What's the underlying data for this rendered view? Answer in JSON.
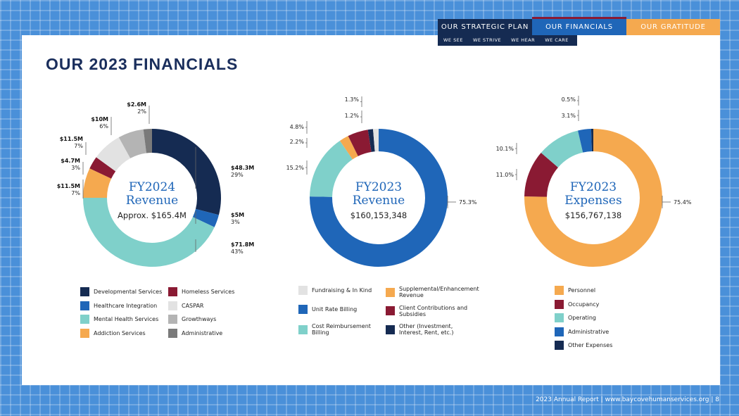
{
  "nav": {
    "tabs": [
      "OUR STRATEGIC PLAN",
      "OUR FINANCIALS",
      "OUR GRATITUDE"
    ],
    "subtabs": [
      "WE SEE",
      "WE STRIVE",
      "WE HEAR",
      "WE CARE"
    ]
  },
  "page_title": "OUR 2023 FINANCIALS",
  "footer": "2023 Annual Report | www.baycovehumanservices.org |  8",
  "chart_data": [
    {
      "type": "pie",
      "donut": true,
      "title": "FY2024 Revenue",
      "title_lines": [
        "FY2024",
        "Revenue"
      ],
      "subtitle": "Approx. $165.4M",
      "labels": [
        "Developmental Services",
        "Healthcare Integration",
        "Mental Health Services",
        "Addiction Services",
        "Homeless Services",
        "CASPAR",
        "Growthways",
        "Administrative"
      ],
      "values": [
        29,
        3,
        43,
        7,
        3,
        7,
        6,
        2
      ],
      "colors": [
        "#152b52",
        "#1f66b8",
        "#7fd0ca",
        "#f5a94f",
        "#8a1a33",
        "#e2e2e2",
        "#b4b4b4",
        "#7a7a7a"
      ],
      "annotations": [
        {
          "amount": "$48.3M",
          "percent": "29%"
        },
        {
          "amount": "$5M",
          "percent": "3%"
        },
        {
          "amount": "$71.8M",
          "percent": "43%"
        },
        {
          "amount": "$11.5M",
          "percent": "7%"
        },
        {
          "amount": "$4.7M",
          "percent": "3%"
        },
        {
          "amount": "$11.5M",
          "percent": "7%"
        },
        {
          "amount": "$10M",
          "percent": "6%"
        },
        {
          "amount": "$2.6M",
          "percent": "2%"
        }
      ]
    },
    {
      "type": "pie",
      "donut": true,
      "title": "FY2023 Revenue",
      "title_lines": [
        "FY2023",
        "Revenue"
      ],
      "subtitle": "$160,153,348",
      "labels": [
        "Unit Rate Billing",
        "Cost Reimbursement Billing",
        "Supplemental/Enhancement Revenue",
        "Client Contributions and Subsidies",
        "Other (Investment, Interest, Rent, etc.)",
        "Fundraising & In Kind"
      ],
      "values": [
        75.3,
        15.2,
        2.2,
        4.8,
        1.2,
        1.3
      ],
      "colors": [
        "#1f66b8",
        "#7fd0ca",
        "#f5a94f",
        "#8a1a33",
        "#152b52",
        "#e2e2e2"
      ],
      "annotations": [
        "75.3%",
        "15.2%",
        "2.2%",
        "4.8%",
        "1.2%",
        "1.3%"
      ]
    },
    {
      "type": "pie",
      "donut": true,
      "title": "FY2023 Expenses",
      "title_lines": [
        "FY2023",
        "Expenses"
      ],
      "subtitle": "$156,767,138",
      "labels": [
        "Personnel",
        "Occupancy",
        "Operating",
        "Administrative",
        "Other Expenses"
      ],
      "values": [
        75.4,
        11.0,
        10.1,
        3.1,
        0.5
      ],
      "colors": [
        "#f5a94f",
        "#8a1a33",
        "#7fd0ca",
        "#1f66b8",
        "#152b52"
      ],
      "annotations": [
        "75.4%",
        "11.0%",
        "10.1%",
        "3.1%",
        "0.5%"
      ]
    }
  ],
  "legends": [
    [
      {
        "label": "Developmental Services",
        "color": "#152b52"
      },
      {
        "label": "Healthcare Integration",
        "color": "#1f66b8"
      },
      {
        "label": "Mental Health Services",
        "color": "#7fd0ca"
      },
      {
        "label": "Addiction Services",
        "color": "#f5a94f"
      },
      {
        "label": "Homeless Services",
        "color": "#8a1a33"
      },
      {
        "label": "CASPAR",
        "color": "#e2e2e2"
      },
      {
        "label": "Growthways",
        "color": "#b4b4b4"
      },
      {
        "label": "Administrative",
        "color": "#7a7a7a"
      }
    ],
    [
      {
        "label": "Fundraising & In Kind",
        "color": "#e2e2e2"
      },
      {
        "label": "Unit Rate Billing",
        "color": "#1f66b8"
      },
      {
        "label": "Cost Reimbursement Billing",
        "color": "#7fd0ca"
      },
      {
        "label": "Supplemental/Enhancement Revenue",
        "color": "#f5a94f"
      },
      {
        "label": "Client Contributions and Subsidies",
        "color": "#8a1a33"
      },
      {
        "label": "Other (Investment, Interest, Rent, etc.)",
        "color": "#152b52"
      }
    ],
    [
      {
        "label": "Personnel",
        "color": "#f5a94f"
      },
      {
        "label": "Occupancy",
        "color": "#8a1a33"
      },
      {
        "label": "Operating",
        "color": "#7fd0ca"
      },
      {
        "label": "Administrative",
        "color": "#1f66b8"
      },
      {
        "label": "Other Expenses",
        "color": "#152b52"
      }
    ]
  ]
}
